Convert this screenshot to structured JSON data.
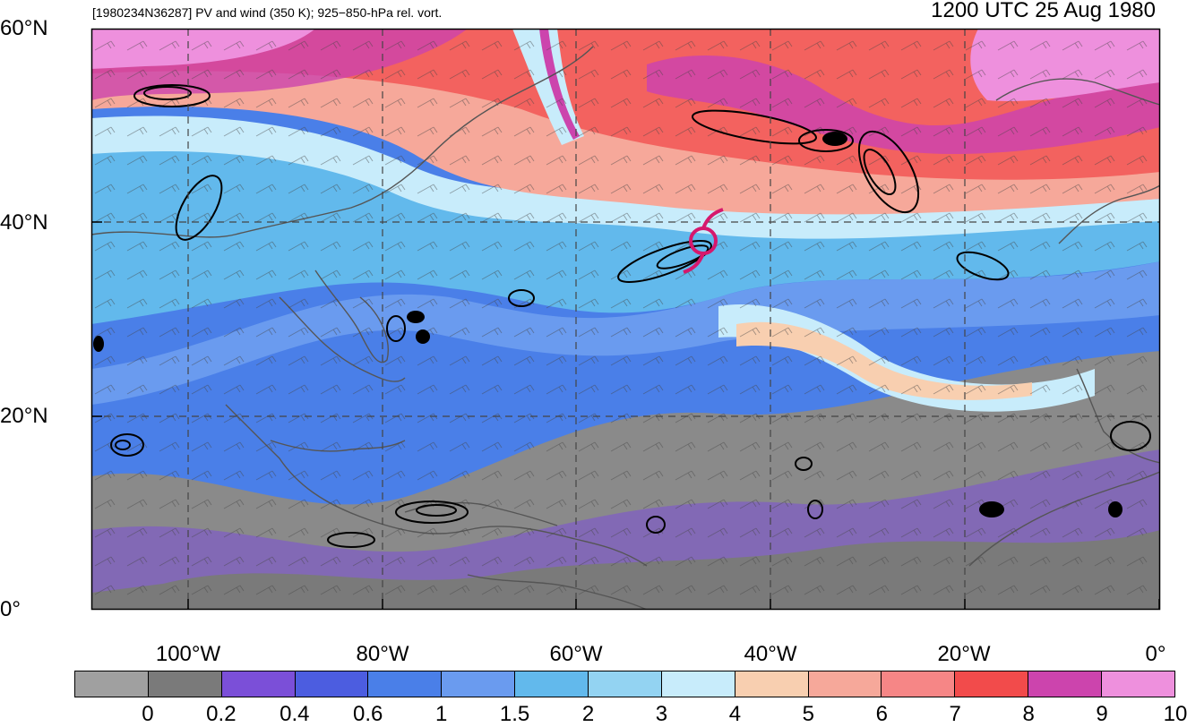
{
  "header": {
    "subtitle": "[1980234N36287] PV and wind (350 K); 925−850-hPa rel. vort.",
    "timestamp": "1200 UTC 25 Aug 1980"
  },
  "map": {
    "lat_labels": [
      "60°N",
      "40°N",
      "20°N",
      "0°"
    ],
    "lon_labels": [
      "100°W",
      "80°W",
      "60°W",
      "40°W",
      "20°W",
      "0°"
    ],
    "storm_marker": "hurricane-symbol-icon",
    "storm_color": "#d6186d"
  },
  "colorbar": {
    "labels": [
      "0",
      "0.2",
      "0.4",
      "0.6",
      "1",
      "1.5",
      "2",
      "3",
      "4",
      "5",
      "6",
      "7",
      "8",
      "9",
      "10"
    ],
    "colors": [
      "#a0a0a0",
      "#7a7a7a",
      "#7b4fd8",
      "#4c5de0",
      "#4a7fe8",
      "#6a9bef",
      "#62b9ec",
      "#93d3f2",
      "#c8ecfb",
      "#f8cfb0",
      "#f6a89a",
      "#f68686",
      "#f24b4b",
      "#cc44ad",
      "#ee90dd"
    ]
  }
}
